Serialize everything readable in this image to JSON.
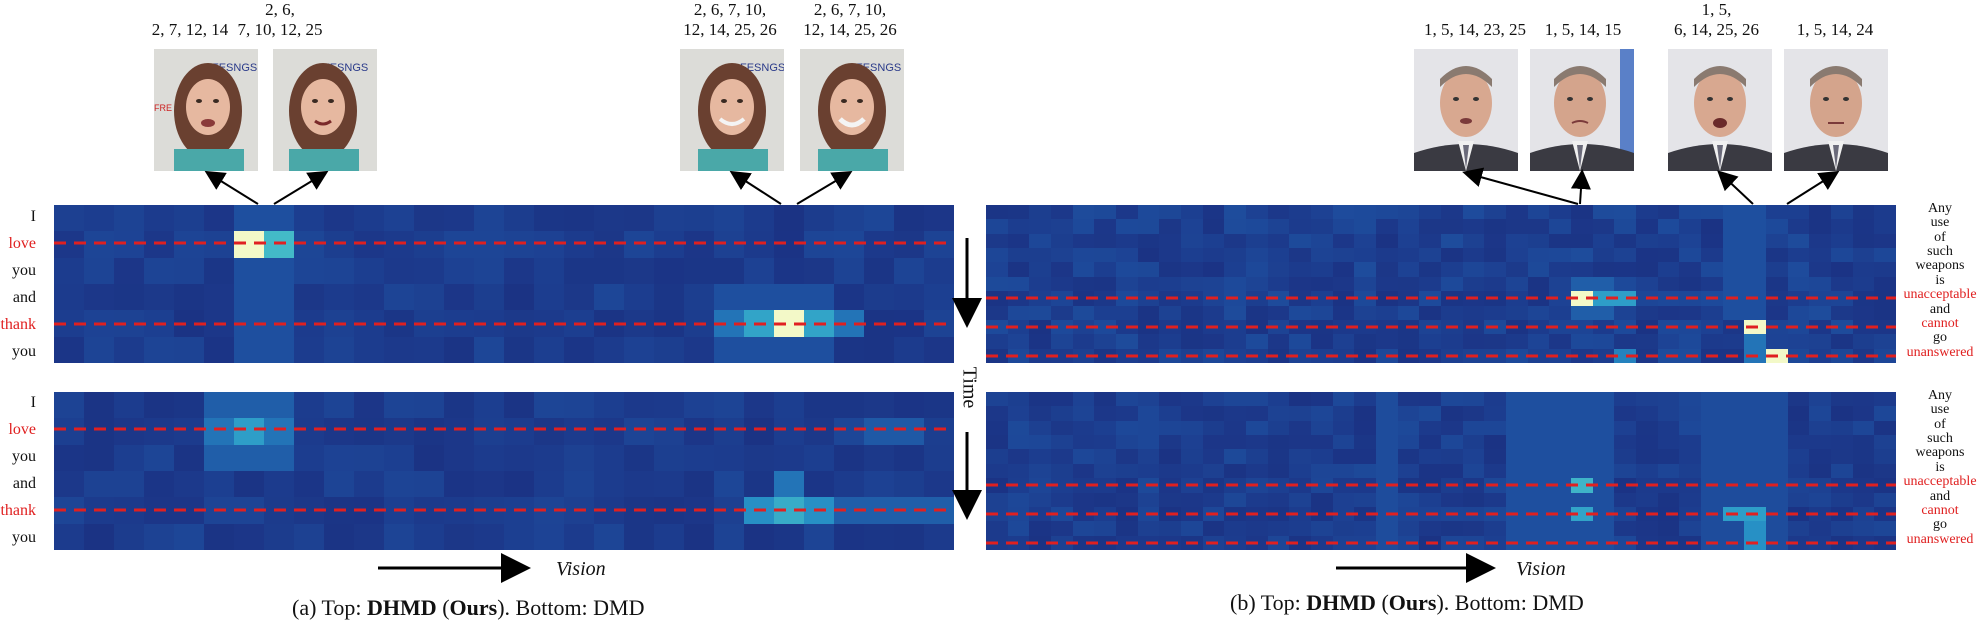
{
  "left_panel": {
    "au_labels": [
      "2, 7, 12, 14",
      "2, 6,\n7, 10, 12, 25",
      "2, 6, 7, 10,\n12, 14, 25, 26",
      "2, 6, 7, 10,\n12, 14, 25, 26"
    ],
    "words": [
      "I",
      "love",
      "you",
      "and",
      "thank",
      "you"
    ],
    "highlight_words": [
      "love",
      "thank"
    ],
    "axis_label": "Vision",
    "caption_prefix": "(a) Top: ",
    "caption_bold1": "DHMD",
    "caption_mid": " (",
    "caption_bold2": "Ours",
    "caption_suffix": "). Bottom: DMD"
  },
  "right_panel": {
    "au_labels": [
      "1, 5, 14, 23, 25",
      "1, 5, 14, 15",
      "1, 5,\n6, 14, 25, 26",
      "1, 5, 14, 24"
    ],
    "words": [
      "Any",
      "use",
      "of",
      "such",
      "weapons",
      "is",
      "unacceptable",
      "and",
      "cannot",
      "go",
      "unanswered"
    ],
    "highlight_words": [
      "unacceptable",
      "cannot",
      "unanswered"
    ],
    "axis_label": "Vision",
    "caption_prefix": "(b) Top: ",
    "caption_bold1": "DHMD",
    "caption_mid": " (",
    "caption_bold2": "Ours",
    "caption_suffix": "). Bottom: DMD"
  },
  "time_label": "Time",
  "colors": {
    "highlight": "#e02020",
    "heat_low": "#1a2a7a",
    "heat_high": "#fbfbc8"
  }
}
